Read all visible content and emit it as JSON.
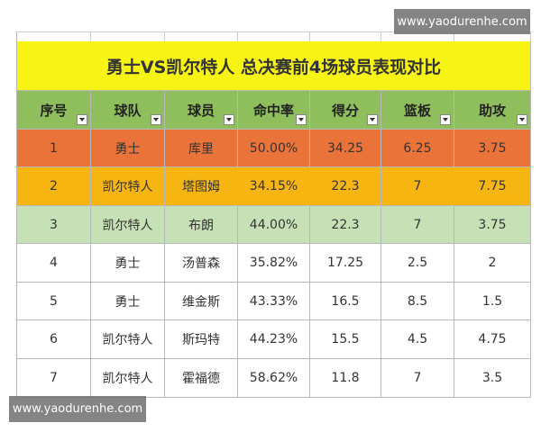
{
  "watermarks": {
    "top": "www.yaodurenhe.com",
    "bottom": "www.yaodurenhe.com"
  },
  "table": {
    "title": "勇士VS凯尔特人  总决赛前4场球员表现对比",
    "headers": [
      "序号",
      "球队",
      "球员",
      "命中率",
      "得分",
      "篮板",
      "助攻"
    ],
    "rows": [
      [
        "1",
        "勇士",
        "库里",
        "50.00%",
        "34.25",
        "6.25",
        "3.75"
      ],
      [
        "2",
        "凯尔特人",
        "塔图姆",
        "34.15%",
        "22.3",
        "7",
        "7.75"
      ],
      [
        "3",
        "凯尔特人",
        "布朗",
        "44.00%",
        "22.3",
        "7",
        "3.75"
      ],
      [
        "4",
        "勇士",
        "汤普森",
        "35.82%",
        "17.25",
        "2.5",
        "2"
      ],
      [
        "5",
        "勇士",
        "维金斯",
        "43.33%",
        "16.5",
        "8.5",
        "1.5"
      ],
      [
        "6",
        "凯尔特人",
        "斯玛特",
        "44.23%",
        "15.5",
        "4.5",
        "4.75"
      ],
      [
        "7",
        "凯尔特人",
        "霍福德",
        "58.62%",
        "11.8",
        "7",
        "3.5"
      ]
    ]
  }
}
